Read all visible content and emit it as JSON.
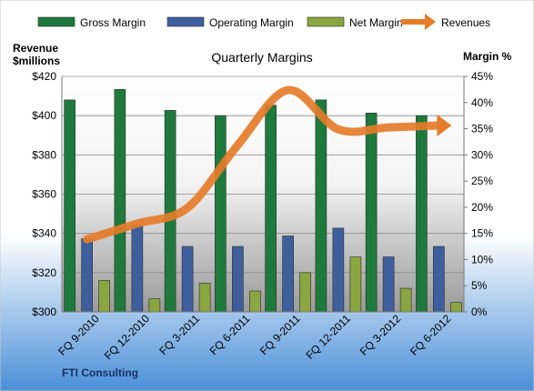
{
  "chart_data": {
    "type": "bar",
    "title": "Quarterly Margins",
    "categories": [
      "FQ 9-2010",
      "FQ 12-2010",
      "FQ 3-2011",
      "FQ 6-2011",
      "FQ 9-2011",
      "FQ 12-2011",
      "FQ 3-2012",
      "FQ 6-2012"
    ],
    "series": [
      {
        "name": "Gross Margin",
        "axis": "right",
        "color": "#1e7a3c",
        "values": [
          40.5,
          42.5,
          38.5,
          37.5,
          39.5,
          40.5,
          38.0,
          37.5
        ]
      },
      {
        "name": "Operating Margin",
        "axis": "right",
        "color": "#3e5f9e",
        "values": [
          14,
          16.5,
          12.5,
          12.5,
          14.5,
          16,
          10.5,
          12.5
        ]
      },
      {
        "name": "Net Margin",
        "axis": "right",
        "color": "#8aa640",
        "values": [
          6,
          2.5,
          5.5,
          4,
          7.5,
          10.5,
          4.5,
          1.8
        ]
      },
      {
        "name": "Revenues",
        "axis": "left",
        "type": "line",
        "color": "#e57c2a",
        "values": [
          337,
          345,
          353,
          385,
          413,
          393,
          394,
          395
        ]
      }
    ],
    "y_left": {
      "label_line1": "Revenue",
      "label_line2": "$millions",
      "ticks": [
        "$300",
        "$320",
        "$340",
        "$360",
        "$380",
        "$400",
        "$420"
      ],
      "min": 300,
      "max": 420
    },
    "y_right": {
      "label": "Margin %",
      "ticks": [
        "0%",
        "5%",
        "10%",
        "15%",
        "20%",
        "25%",
        "30%",
        "35%",
        "40%",
        "45%"
      ],
      "min": 0,
      "max": 45
    },
    "legend_position": "top",
    "grid": true
  },
  "source_label": "FTI Consulting"
}
